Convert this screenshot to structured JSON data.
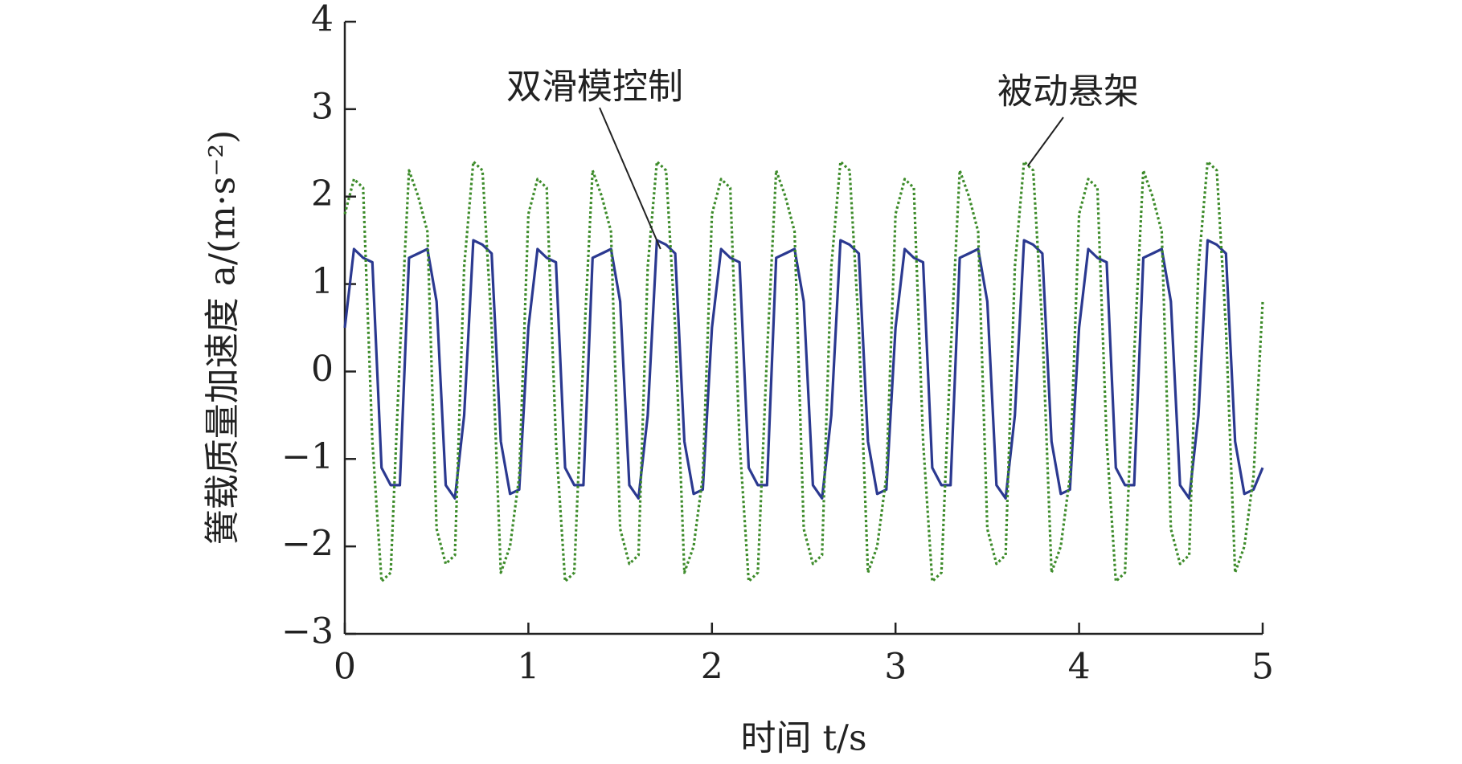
{
  "chart_data": {
    "type": "line",
    "xlabel": "时间 t/s",
    "ylabel": "簧载质量加速度 a/(m·s⁻²)",
    "annotations": [
      "双滑模控制",
      "被动悬架"
    ],
    "x": [
      0,
      0.05,
      0.1,
      0.15,
      0.2,
      0.25,
      0.3,
      0.35,
      0.4,
      0.45,
      0.5,
      0.55,
      0.6,
      0.65,
      0.7,
      0.75,
      0.8,
      0.85,
      0.9,
      0.95,
      1,
      1.05,
      1.1,
      1.15,
      1.2,
      1.25,
      1.3,
      1.35,
      1.4,
      1.45,
      1.5,
      1.55,
      1.6,
      1.65,
      1.7,
      1.75,
      1.8,
      1.85,
      1.9,
      1.95,
      2,
      2.05,
      2.1,
      2.15,
      2.2,
      2.25,
      2.3,
      2.35,
      2.4,
      2.45,
      2.5,
      2.55,
      2.6,
      2.65,
      2.7,
      2.75,
      2.8,
      2.85,
      2.9,
      2.95,
      3,
      3.05,
      3.1,
      3.15,
      3.2,
      3.25,
      3.3,
      3.35,
      3.4,
      3.45,
      3.5,
      3.55,
      3.6,
      3.65,
      3.7,
      3.75,
      3.8,
      3.85,
      3.9,
      3.95,
      4,
      4.05,
      4.1,
      4.15,
      4.2,
      4.25,
      4.3,
      4.35,
      4.4,
      4.45,
      4.5,
      4.55,
      4.6,
      4.65,
      4.7,
      4.75,
      4.8,
      4.85,
      4.9,
      4.95,
      5
    ],
    "series": [
      {
        "name": "双滑模控制",
        "color": "#2b3990",
        "values": [
          0.5,
          1.4,
          1.3,
          1.25,
          -1.1,
          -1.3,
          -1.3,
          1.3,
          1.35,
          1.4,
          0.8,
          -1.3,
          -1.45,
          -0.5,
          1.5,
          1.45,
          1.35,
          -0.8,
          -1.4,
          -1.35,
          0.5,
          1.4,
          1.3,
          1.25,
          -1.1,
          -1.3,
          -1.3,
          1.3,
          1.35,
          1.4,
          0.8,
          -1.3,
          -1.45,
          -0.5,
          1.5,
          1.45,
          1.35,
          -0.8,
          -1.4,
          -1.35,
          0.5,
          1.4,
          1.3,
          1.25,
          -1.1,
          -1.3,
          -1.3,
          1.3,
          1.35,
          1.4,
          0.8,
          -1.3,
          -1.45,
          -0.5,
          1.5,
          1.45,
          1.35,
          -0.8,
          -1.4,
          -1.35,
          0.5,
          1.4,
          1.3,
          1.25,
          -1.1,
          -1.3,
          -1.3,
          1.3,
          1.35,
          1.4,
          0.8,
          -1.3,
          -1.45,
          -0.5,
          1.5,
          1.45,
          1.35,
          -0.8,
          -1.4,
          -1.35,
          0.5,
          1.4,
          1.3,
          1.25,
          -1.1,
          -1.3,
          -1.3,
          1.3,
          1.35,
          1.4,
          0.8,
          -1.3,
          -1.45,
          -0.5,
          1.5,
          1.45,
          1.35,
          -0.8,
          -1.4,
          -1.35,
          -1.1
        ]
      },
      {
        "name": "被动悬架",
        "color": "#3d8b2a",
        "dashed": true,
        "values": [
          1.8,
          2.2,
          2.1,
          -0.8,
          -2.4,
          -2.3,
          0.2,
          2.3,
          2.0,
          1.6,
          -1.8,
          -2.2,
          -2.1,
          1.2,
          2.4,
          2.3,
          0.5,
          -2.3,
          -2.0,
          -1.2,
          1.8,
          2.2,
          2.1,
          -0.8,
          -2.4,
          -2.3,
          0.2,
          2.3,
          2.0,
          1.6,
          -1.8,
          -2.2,
          -2.1,
          1.2,
          2.4,
          2.3,
          0.5,
          -2.3,
          -2.0,
          -1.2,
          1.8,
          2.2,
          2.1,
          -0.8,
          -2.4,
          -2.3,
          0.2,
          2.3,
          2.0,
          1.6,
          -1.8,
          -2.2,
          -2.1,
          1.2,
          2.4,
          2.3,
          0.5,
          -2.3,
          -2.0,
          -1.2,
          1.8,
          2.2,
          2.1,
          -0.8,
          -2.4,
          -2.3,
          0.2,
          2.3,
          2.0,
          1.6,
          -1.8,
          -2.2,
          -2.1,
          1.2,
          2.4,
          2.3,
          0.5,
          -2.3,
          -2.0,
          -1.2,
          1.8,
          2.2,
          2.1,
          -0.8,
          -2.4,
          -2.3,
          0.2,
          2.3,
          2.0,
          1.6,
          -1.8,
          -2.2,
          -2.1,
          1.2,
          2.4,
          2.3,
          0.5,
          -2.3,
          -2.0,
          -1.2,
          0.8
        ]
      }
    ],
    "xlim": [
      0,
      5
    ],
    "xticks": [
      0,
      1,
      2,
      3,
      4,
      5
    ],
    "ylim": [
      -3,
      4
    ],
    "yticks": [
      {
        "value": -3,
        "label": "−3"
      },
      {
        "value": -2,
        "label": "−2"
      },
      {
        "value": -1,
        "label": "−1"
      },
      0,
      1,
      2,
      3,
      4
    ],
    "grid": false
  }
}
